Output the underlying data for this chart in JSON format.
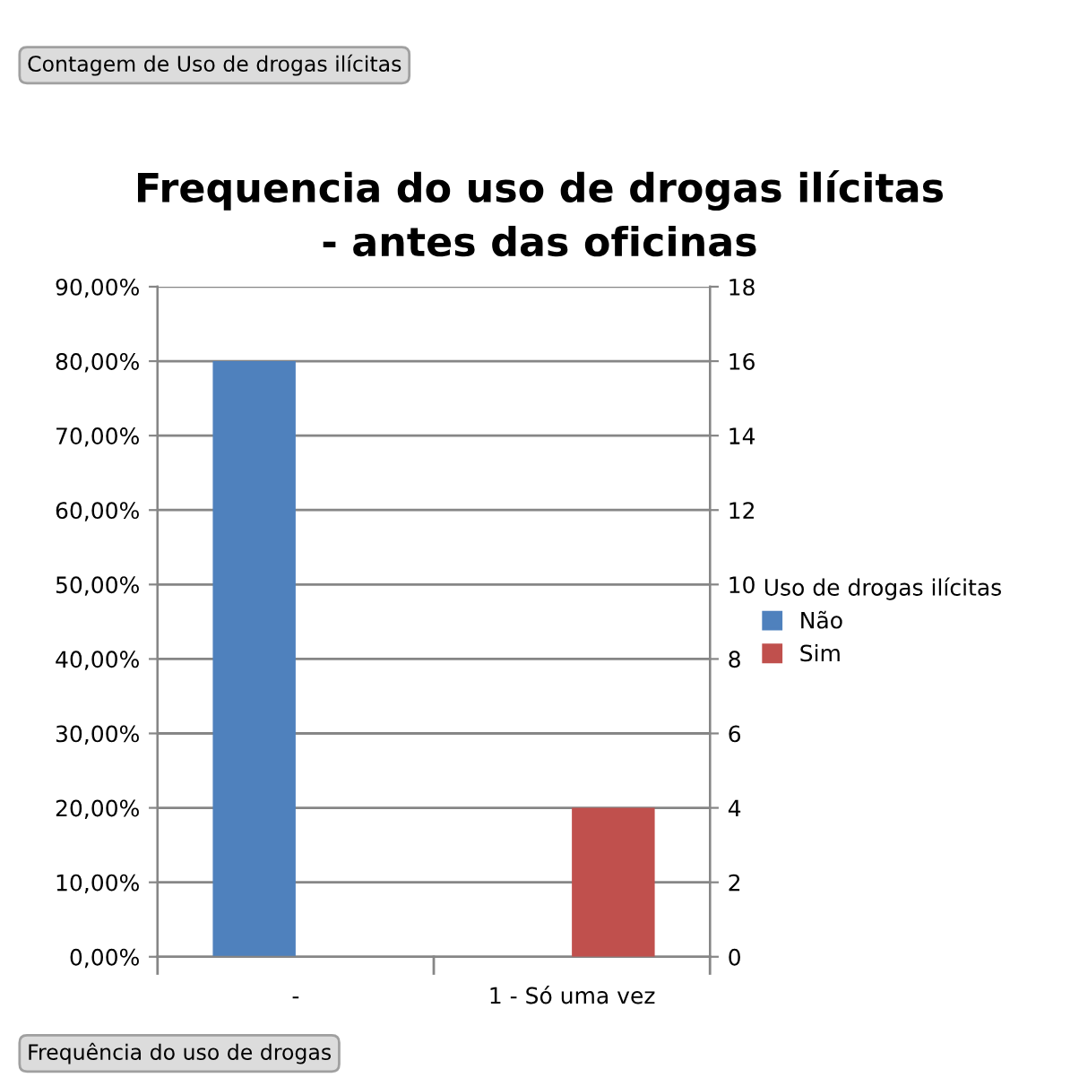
{
  "chart_data": {
    "type": "bar",
    "title": "Frequencia do uso de drogas ilícitas\n- antes das oficinas",
    "categories": [
      "-",
      "1 - Só uma vez"
    ],
    "series": [
      {
        "name": "Não",
        "color": "#4f81bd",
        "values": [
          80,
          null
        ]
      },
      {
        "name": "Sim",
        "color": "#c0504d",
        "values": [
          null,
          4
        ],
        "axis": "y2"
      }
    ],
    "ylim": [
      0,
      90
    ],
    "yticks": [
      {
        "value": 0,
        "label": "0,00%"
      },
      {
        "value": 10,
        "label": "10,00%"
      },
      {
        "value": 20,
        "label": "20,00%"
      },
      {
        "value": 30,
        "label": "30,00%"
      },
      {
        "value": 40,
        "label": "40,00%"
      },
      {
        "value": 50,
        "label": "50,00%"
      },
      {
        "value": 60,
        "label": "60,00%"
      },
      {
        "value": 70,
        "label": "70,00%"
      },
      {
        "value": 80,
        "label": "80,00%"
      },
      {
        "value": 90,
        "label": "90,00%"
      }
    ],
    "y2lim": [
      0,
      18
    ],
    "y2ticks": [
      0,
      2,
      4,
      6,
      8,
      10,
      12,
      14,
      16,
      18
    ],
    "legend_title": "Uso de drogas ilícitas",
    "legend": "right",
    "grid": "y",
    "annotations": [
      "Contagem de Uso de drogas ilícitas",
      "Frequência do uso de drogas"
    ]
  }
}
